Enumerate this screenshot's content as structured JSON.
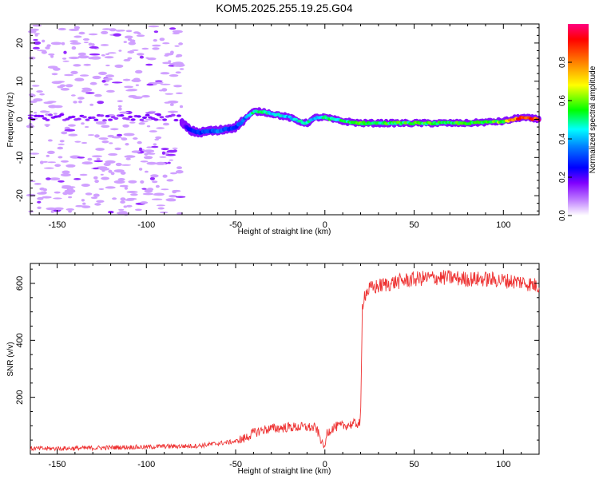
{
  "title": "KOM5.2025.255.19.25.G04",
  "chart_data": [
    {
      "type": "heatmap",
      "xlabel": "Height of straight line (km)",
      "ylabel": "Frequency (Hz)",
      "xlim": [
        -165,
        120
      ],
      "ylim": [
        -25,
        25
      ],
      "xticks": [
        -150,
        -100,
        -50,
        0,
        50,
        100
      ],
      "yticks": [
        -20,
        -10,
        0,
        10,
        20
      ],
      "colorbar": {
        "label": "Normalized spectral amplitude",
        "range": [
          0,
          1
        ],
        "ticks": [
          0.0,
          0.2,
          0.4,
          0.6,
          0.8
        ],
        "colors": [
          "#ffffff",
          "#8000ff",
          "#0000ff",
          "#00ffff",
          "#00ff00",
          "#ffff00",
          "#ff8000",
          "#ff0000",
          "#ff0080"
        ]
      },
      "noise_region_x": [
        -165,
        -80
      ],
      "ridge": {
        "x": [
          -80,
          -75,
          -70,
          -65,
          -60,
          -55,
          -50,
          -45,
          -40,
          -35,
          -30,
          -25,
          -20,
          -15,
          -10,
          -5,
          0,
          10,
          20,
          40,
          60,
          80,
          100,
          110,
          120
        ],
        "frequency": [
          -1,
          -3,
          -3.5,
          -3,
          -3,
          -2.5,
          -2,
          0,
          2,
          2,
          1.5,
          1,
          0.5,
          -0.5,
          -1,
          0.5,
          0.5,
          -0.5,
          -1,
          -1,
          -1,
          -1,
          -0.5,
          0.5,
          0
        ],
        "amplitude": [
          0.15,
          0.25,
          0.3,
          0.3,
          0.35,
          0.3,
          0.3,
          0.35,
          0.5,
          0.5,
          0.45,
          0.45,
          0.4,
          0.45,
          0.5,
          0.4,
          0.5,
          0.5,
          0.55,
          0.55,
          0.55,
          0.55,
          0.6,
          0.95,
          0.9
        ]
      },
      "grid": false
    },
    {
      "type": "line",
      "xlabel": "Height of straight line (km)",
      "ylabel": "SNR (v/v)",
      "xlim": [
        -165,
        120
      ],
      "ylim": [
        0,
        670
      ],
      "xticks": [
        -150,
        -100,
        -50,
        0,
        50,
        100
      ],
      "yticks": [
        200,
        400,
        600
      ],
      "color": "#ee3333",
      "x": [
        -165,
        -150,
        -130,
        -110,
        -100,
        -90,
        -80,
        -70,
        -60,
        -50,
        -45,
        -40,
        -35,
        -30,
        -20,
        -10,
        -5,
        0,
        1,
        5,
        10,
        15,
        20,
        21,
        22,
        25,
        30,
        40,
        50,
        60,
        70,
        80,
        90,
        100,
        110,
        120
      ],
      "snr": [
        20,
        20,
        22,
        25,
        25,
        28,
        28,
        30,
        38,
        45,
        55,
        75,
        85,
        90,
        95,
        95,
        92,
        20,
        75,
        95,
        100,
        105,
        110,
        520,
        560,
        580,
        590,
        605,
        615,
        620,
        620,
        615,
        615,
        610,
        605,
        590
      ],
      "grid": false
    }
  ]
}
